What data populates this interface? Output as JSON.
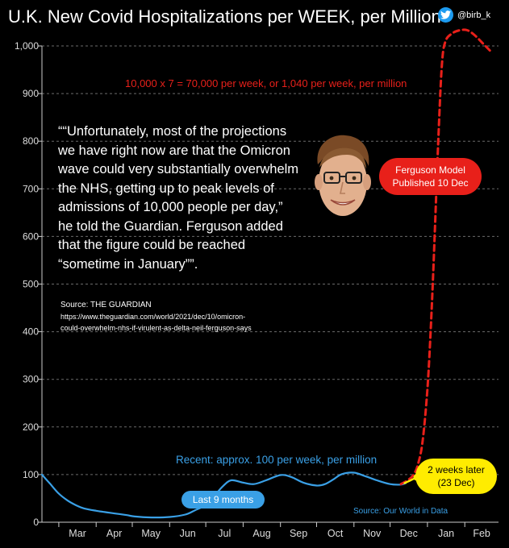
{
  "title": "U.K. New Covid Hospitalizations per WEEK, per Million",
  "handle": "@birb_k",
  "handle_icon": "twitter-bird-icon",
  "quote": "““Unfortunately, most of the projections we have right now are that the Omicron wave could very substantially overwhelm the NHS, getting up to peak levels of admissions of 10,000 people per day,” he told the Guardian. Ferguson added that the figure could be reached “sometime in January””.",
  "source_label": "Source: THE GUARDIAN",
  "source_url_line1": "https://www.theguardian.com/world/2021/dec/10/omicron-",
  "source_url_line2": "could-overwhelm-nhs-if-virulent-as-delta-neil-ferguson-says",
  "annotations": {
    "model_note": "10,000 x 7 = 70,000 per week, or 1,040 per week, per million",
    "recent_note": "Recent: approx. 100 per week, per million",
    "data_source": "Source: Our World in Data",
    "ferguson_line1": "Ferguson Model",
    "ferguson_line2": "Published 10 Dec",
    "later_line1": "2 weeks later",
    "later_line2": "(23 Dec)",
    "last9": "Last 9 months"
  },
  "colors": {
    "background": "#000000",
    "actual": "#3aa0e6",
    "model": "#e8201a",
    "later": "#ffec00",
    "grid": "#6b6b6b"
  },
  "chart_data": {
    "type": "line",
    "title": "U.K. New Covid Hospitalizations per WEEK, per Million",
    "ylim": [
      0,
      1000
    ],
    "yticks": [
      0,
      100,
      200,
      300,
      400,
      500,
      600,
      700,
      800,
      900,
      1000
    ],
    "ytick_labels": [
      "0",
      "100",
      "200",
      "300",
      "400",
      "500",
      "600",
      "700",
      "800",
      "900",
      "1,000"
    ],
    "xlim": [
      "2021-02-15",
      "2022-03-01"
    ],
    "xticks": [
      "2021-03-01",
      "2021-04-01",
      "2021-05-01",
      "2021-06-01",
      "2021-07-01",
      "2021-08-01",
      "2021-09-01",
      "2021-10-01",
      "2021-11-01",
      "2021-12-01",
      "2022-01-01",
      "2022-02-01"
    ],
    "xtick_labels": [
      "Mar",
      "Apr",
      "May",
      "Jun",
      "Jul",
      "Aug",
      "Sep",
      "Oct",
      "Nov",
      "Dec",
      "Jan",
      "Feb"
    ],
    "grid": "horizontal dashed",
    "series": [
      {
        "style": "solid",
        "points": [
          [
            "2021-02-15",
            100
          ],
          [
            "2021-02-22",
            80
          ],
          [
            "2021-03-01",
            60
          ],
          [
            "2021-03-08",
            46
          ],
          [
            "2021-03-15",
            36
          ],
          [
            "2021-03-22",
            29
          ],
          [
            "2021-04-01",
            24
          ],
          [
            "2021-04-12",
            20
          ],
          [
            "2021-04-26",
            15
          ],
          [
            "2021-05-03",
            12
          ],
          [
            "2021-05-17",
            10
          ],
          [
            "2021-06-01",
            11
          ],
          [
            "2021-06-14",
            16
          ],
          [
            "2021-06-22",
            25
          ],
          [
            "2021-06-30",
            35
          ],
          [
            "2021-07-08",
            55
          ],
          [
            "2021-07-15",
            75
          ],
          [
            "2021-07-22",
            88
          ],
          [
            "2021-08-01",
            83
          ],
          [
            "2021-08-10",
            80
          ],
          [
            "2021-08-20",
            88
          ],
          [
            "2021-09-01",
            99
          ],
          [
            "2021-09-10",
            95
          ],
          [
            "2021-09-20",
            83
          ],
          [
            "2021-10-01",
            77
          ],
          [
            "2021-10-08",
            80
          ],
          [
            "2021-10-15",
            90
          ],
          [
            "2021-10-22",
            101
          ],
          [
            "2021-11-01",
            104
          ],
          [
            "2021-11-10",
            97
          ],
          [
            "2021-11-20",
            88
          ],
          [
            "2021-12-01",
            80
          ],
          [
            "2021-12-10",
            79
          ],
          [
            "2021-12-14",
            82
          ]
        ]
      },
      {
        "style": "dashed",
        "points": [
          [
            "2021-12-10",
            80
          ],
          [
            "2021-12-15",
            87
          ],
          [
            "2021-12-20",
            98
          ],
          [
            "2021-12-24",
            120
          ],
          [
            "2021-12-28",
            170
          ],
          [
            "2022-01-01",
            280
          ],
          [
            "2022-01-04",
            420
          ],
          [
            "2022-01-07",
            600
          ],
          [
            "2022-01-10",
            800
          ],
          [
            "2022-01-13",
            960
          ],
          [
            "2022-01-16",
            1010
          ],
          [
            "2022-01-22",
            1027
          ],
          [
            "2022-01-28",
            1033
          ],
          [
            "2022-02-03",
            1033
          ],
          [
            "2022-02-09",
            1023
          ],
          [
            "2022-02-15",
            1008
          ],
          [
            "2022-02-22",
            990
          ]
        ]
      },
      {
        "style": "solid",
        "points": [
          [
            "2021-12-13",
            82
          ],
          [
            "2021-12-18",
            88
          ],
          [
            "2021-12-23",
            94
          ]
        ]
      }
    ]
  }
}
